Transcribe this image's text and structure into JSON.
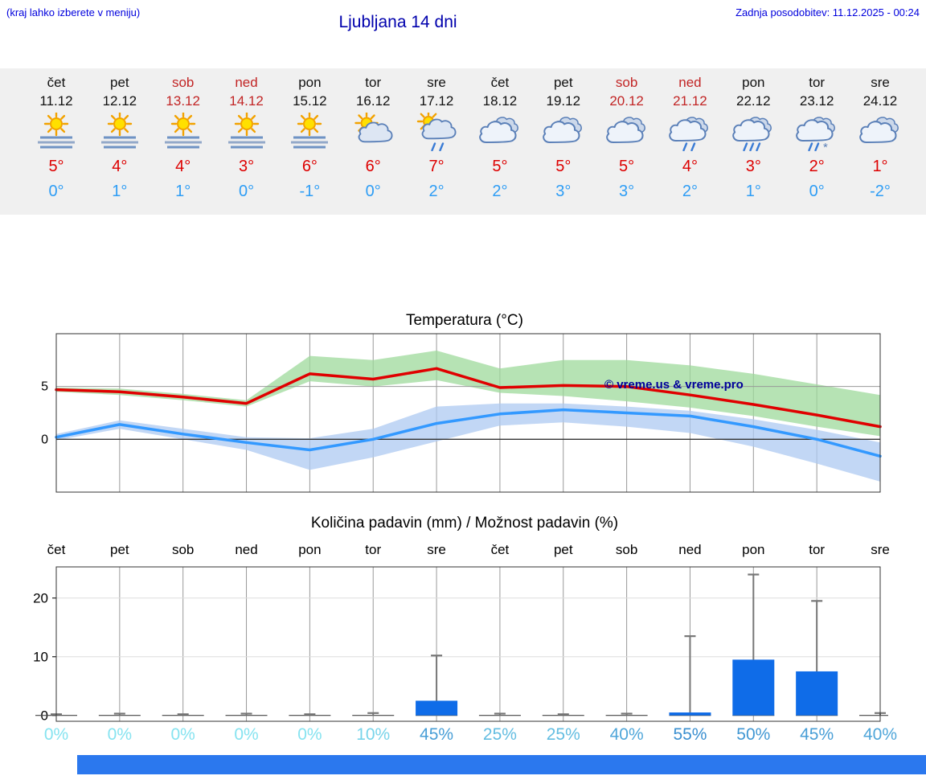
{
  "page": {
    "top_left_note": "(kraj lahko izberete v meniju)",
    "title": "Ljubljana 14 dni",
    "last_update": "Zadnja posodobitev: 11.12.2025 - 00:24"
  },
  "colors": {
    "link_blue": "#0000dd",
    "title_blue": "#0000ad",
    "high_red": "#dd0000",
    "low_blue": "#2e9df5",
    "weekend_red": "#c22525",
    "strip_bg": "#f0f0f0",
    "bar_blue": "#0f6ce8",
    "temp_max_line": "#e00000",
    "temp_min_line": "#3399ff",
    "band_green": "#9ed99b",
    "band_blue": "#adc9f1",
    "percent_low": "#86e3f0",
    "percent_high": "#3a8fd0",
    "footer_blue": "#2b78ee"
  },
  "forecast": {
    "days": [
      {
        "day": "čet",
        "date": "11.12",
        "weekend": false,
        "icon": "sun-fog",
        "high": "5°",
        "low": "0°"
      },
      {
        "day": "pet",
        "date": "12.12",
        "weekend": false,
        "icon": "sun-fog",
        "high": "4°",
        "low": "1°"
      },
      {
        "day": "sob",
        "date": "13.12",
        "weekend": true,
        "icon": "sun-fog",
        "high": "4°",
        "low": "1°"
      },
      {
        "day": "ned",
        "date": "14.12",
        "weekend": true,
        "icon": "sun-fog",
        "high": "3°",
        "low": "0°"
      },
      {
        "day": "pon",
        "date": "15.12",
        "weekend": false,
        "icon": "sun-fog",
        "high": "6°",
        "low": "-1°"
      },
      {
        "day": "tor",
        "date": "16.12",
        "weekend": false,
        "icon": "sun-cloud",
        "high": "6°",
        "low": "0°"
      },
      {
        "day": "sre",
        "date": "17.12",
        "weekend": false,
        "icon": "sun-cloud-rain",
        "high": "7°",
        "low": "2°"
      },
      {
        "day": "čet",
        "date": "18.12",
        "weekend": false,
        "icon": "cloud",
        "high": "5°",
        "low": "2°"
      },
      {
        "day": "pet",
        "date": "19.12",
        "weekend": false,
        "icon": "cloud",
        "high": "5°",
        "low": "3°"
      },
      {
        "day": "sob",
        "date": "20.12",
        "weekend": true,
        "icon": "cloud",
        "high": "5°",
        "low": "3°"
      },
      {
        "day": "ned",
        "date": "21.12",
        "weekend": true,
        "icon": "cloud-rain",
        "high": "4°",
        "low": "2°"
      },
      {
        "day": "pon",
        "date": "22.12",
        "weekend": false,
        "icon": "cloud-heavy-rain",
        "high": "3°",
        "low": "1°"
      },
      {
        "day": "tor",
        "date": "23.12",
        "weekend": false,
        "icon": "cloud-rain-snow",
        "high": "2°",
        "low": "0°"
      },
      {
        "day": "sre",
        "date": "24.12",
        "weekend": false,
        "icon": "cloud",
        "high": "1°",
        "low": "-2°"
      }
    ]
  },
  "chart_data": [
    {
      "type": "line",
      "title": "Temperatura (°C)",
      "x_labels": [
        "čet",
        "pet",
        "sob",
        "ned",
        "pon",
        "tor",
        "sre",
        "čet",
        "pet",
        "sob",
        "ned",
        "pon",
        "tor",
        "sre"
      ],
      "ylim": [
        -5,
        10
      ],
      "yticks": [
        0,
        5
      ],
      "grid": true,
      "watermark": "© vreme.us & vreme.pro",
      "series": [
        {
          "name": "max-temp",
          "color": "#e00000",
          "values": [
            4.7,
            4.5,
            4.0,
            3.4,
            6.2,
            5.7,
            6.7,
            4.9,
            5.1,
            5.0,
            4.2,
            3.3,
            2.3,
            1.2
          ]
        },
        {
          "name": "min-temp",
          "color": "#3399ff",
          "values": [
            0.2,
            1.4,
            0.5,
            -0.3,
            -1.0,
            0.0,
            1.5,
            2.4,
            2.8,
            2.5,
            2.2,
            1.2,
            0.0,
            -1.6
          ]
        }
      ],
      "bands": [
        {
          "name": "max-range",
          "color": "#9ed99b",
          "upper": [
            4.9,
            4.8,
            4.3,
            3.7,
            7.9,
            7.5,
            8.4,
            6.7,
            7.5,
            7.5,
            7.0,
            6.2,
            5.2,
            4.2
          ],
          "lower": [
            4.5,
            4.2,
            3.7,
            3.1,
            5.5,
            5.0,
            5.6,
            4.4,
            4.1,
            3.6,
            3.0,
            2.2,
            1.2,
            0.3
          ]
        },
        {
          "name": "min-range",
          "color": "#adc9f1",
          "upper": [
            0.5,
            1.8,
            1.0,
            0.2,
            0.1,
            1.0,
            3.1,
            3.4,
            3.4,
            3.1,
            2.7,
            1.9,
            0.9,
            -0.3
          ],
          "lower": [
            -0.1,
            1.0,
            0.0,
            -1.0,
            -2.9,
            -1.7,
            -0.2,
            1.3,
            1.6,
            1.2,
            0.6,
            -0.7,
            -2.3,
            -4.0
          ]
        }
      ]
    },
    {
      "type": "bar",
      "title": "Količina padavin (mm) / Možnost padavin (%)",
      "categories": [
        "čet",
        "pet",
        "sob",
        "ned",
        "pon",
        "tor",
        "sre",
        "čet",
        "pet",
        "sob",
        "ned",
        "pon",
        "tor",
        "sre"
      ],
      "ylim": [
        -1,
        25.3
      ],
      "yticks": [
        0,
        10,
        20
      ],
      "ylabel": "mm",
      "values": [
        0,
        0,
        0,
        0,
        0,
        0,
        2.5,
        0,
        0,
        0,
        0.5,
        9.5,
        7.5,
        0
      ],
      "whisker_max": [
        0.2,
        0.3,
        0.2,
        0.3,
        0.2,
        0.4,
        10.2,
        0.3,
        0.2,
        0.3,
        13.5,
        24,
        19.5,
        0.4
      ],
      "precip_probability_pct": [
        0,
        0,
        0,
        0,
        0,
        10,
        45,
        25,
        25,
        40,
        55,
        50,
        45,
        40
      ]
    }
  ]
}
